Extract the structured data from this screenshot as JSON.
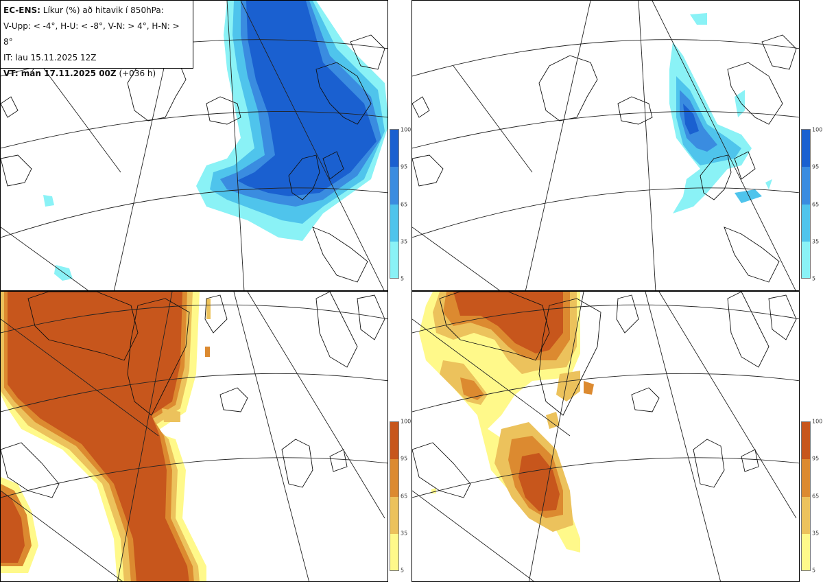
{
  "header": {
    "model": "EC-ENS:",
    "title": "Líkur (%) að hitavik í 850hPa:",
    "thresholds": "V-Upp: < -4°, H-U: < -8°, V-N: > 4°, H-N: > 8°",
    "init_time": "IT: lau 15.11.2025 12Z",
    "valid_label": "VT: mán 17.11.2025 00Z",
    "lead": "(+036 h)"
  },
  "colorbar": {
    "ticks": [
      "100",
      "95",
      "65",
      "35",
      "5"
    ],
    "cold_colors": [
      "#1a60d0",
      "#3a8ce0",
      "#4fc4ec",
      "#8af2f6"
    ],
    "warm_colors": [
      "#c7561c",
      "#dc8a30",
      "#ecc25c",
      "#fff98a"
    ]
  },
  "panels": [
    {
      "id": "top-left",
      "variable": "V-Upp",
      "description_threshold": "< -4°",
      "scheme": "cold"
    },
    {
      "id": "top-right",
      "variable": "H-U",
      "description_threshold": "< -8°",
      "scheme": "cold"
    },
    {
      "id": "bottom-left",
      "variable": "V-N",
      "description_threshold": "> 4°",
      "scheme": "warm"
    },
    {
      "id": "bottom-right",
      "variable": "H-N",
      "description_threshold": "> 8°",
      "scheme": "warm"
    }
  ]
}
